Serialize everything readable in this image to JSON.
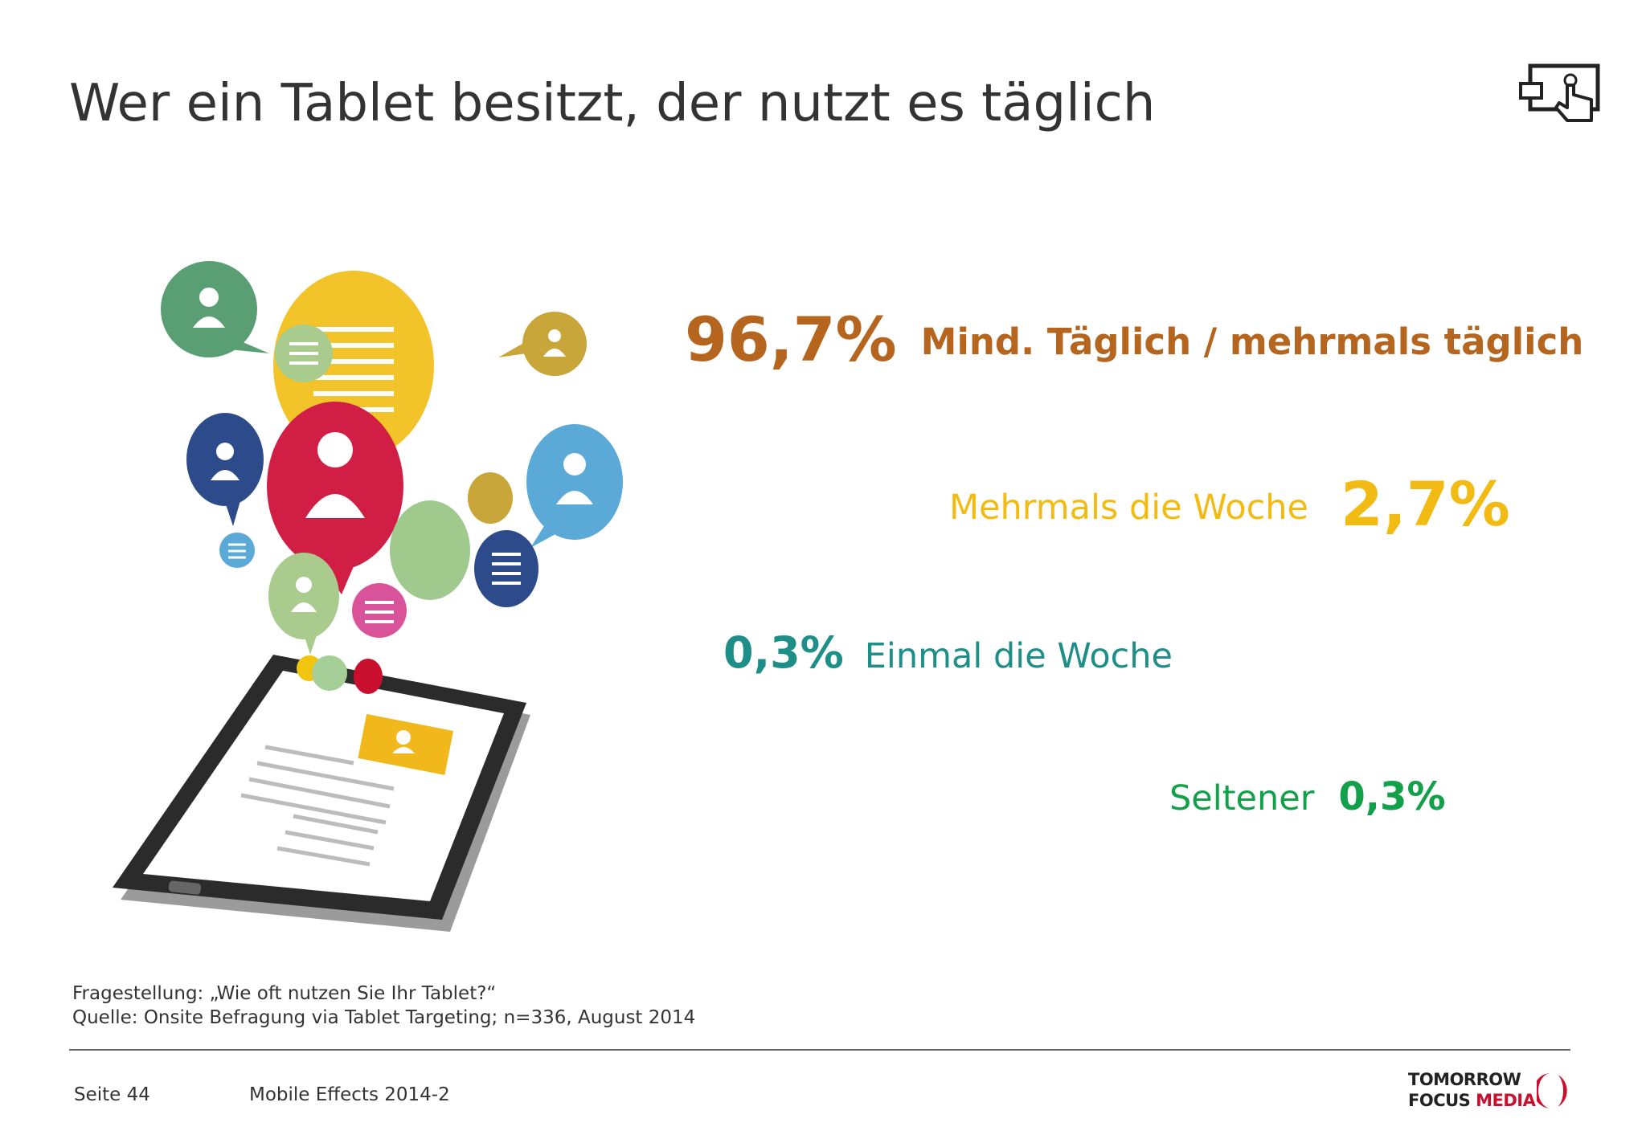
{
  "slide": {
    "title": "Wer ein Tablet besitzt, der nutzt es täglich"
  },
  "stats": [
    {
      "value": "96,7%",
      "label": "Mind. Täglich / mehrmals täglich",
      "color": "#b5651d"
    },
    {
      "value": "2,7%",
      "label": "Mehrmals die Woche",
      "color": "#f2bb13"
    },
    {
      "value": "0,3%",
      "label": "Einmal die Woche",
      "color": "#1e8e88"
    },
    {
      "value": "0,3%",
      "label": "Seltener",
      "color": "#12a14a"
    }
  ],
  "footnote": {
    "question": "Fragestellung: „Wie oft nutzen Sie Ihr Tablet?“",
    "source": "Quelle: Onsite Befragung via Tablet Targeting; n=336, August 2014"
  },
  "footer": {
    "page": "Seite 44",
    "document": "Mobile Effects 2014-2",
    "logo_line1": "TOMORROW",
    "logo_line2_a": "FOCUS",
    "logo_line2_b": "MEDIA"
  },
  "icons": {
    "corner": "tablet-touch-icon",
    "illustration": "tablet-social-bubbles-illustration"
  }
}
